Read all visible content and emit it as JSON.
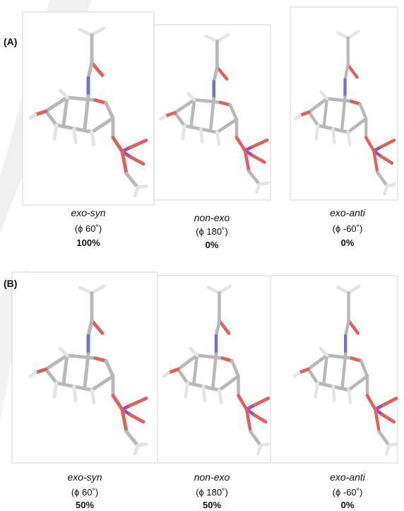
{
  "panels": [
    {
      "label": "(A)",
      "structures": [
        {
          "name": "exo-syn",
          "angle": "(ϕ 60˚)",
          "population": "100%"
        },
        {
          "name": "non-exo",
          "angle": "(ϕ 180˚)",
          "population": "0%"
        },
        {
          "name": "exo-anti",
          "angle": "(ϕ -60˚)",
          "population": "0%"
        }
      ]
    },
    {
      "label": "(B)",
      "structures": [
        {
          "name": "exo-syn",
          "angle": "(ϕ 60˚)",
          "population": "50%"
        },
        {
          "name": "non-exo",
          "angle": "(ϕ 180˚)",
          "population": "50%"
        },
        {
          "name": "exo-anti",
          "angle": "(ϕ -60˚)",
          "population": "0%"
        }
      ]
    }
  ]
}
